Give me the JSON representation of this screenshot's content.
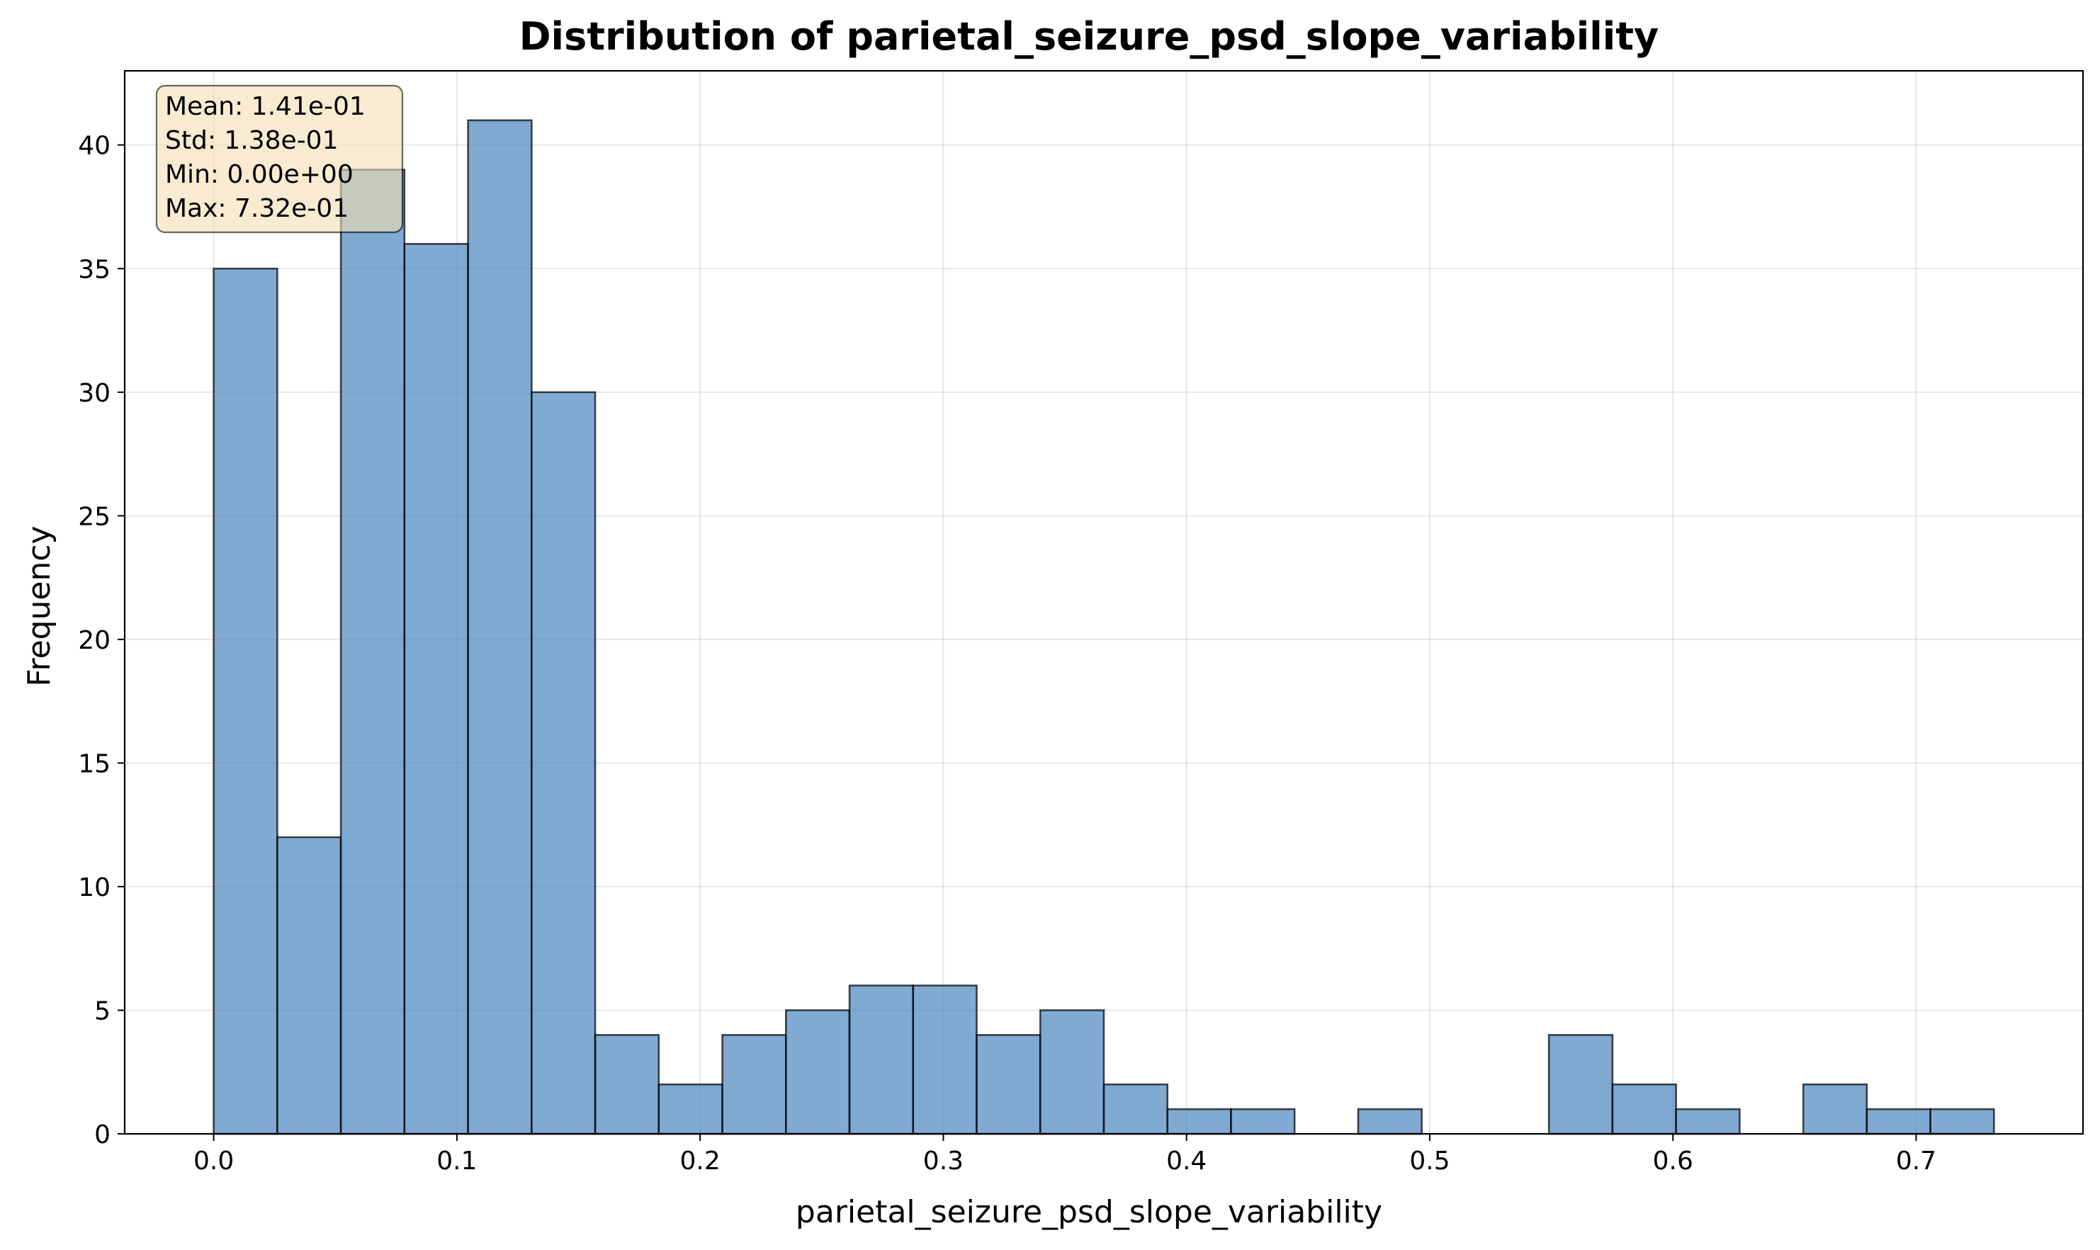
{
  "chart_data": {
    "type": "bar",
    "title": "Distribution of parietal_seizure_psd_slope_variability",
    "xlabel": "parietal_seizure_psd_slope_variability",
    "ylabel": "Frequency",
    "xlim": [
      -0.0366,
      0.7686
    ],
    "ylim": [
      0,
      43
    ],
    "x_ticks": [
      0.0,
      0.1,
      0.2,
      0.3,
      0.4,
      0.5,
      0.6,
      0.7
    ],
    "x_tick_labels": [
      "0.0",
      "0.1",
      "0.2",
      "0.3",
      "0.4",
      "0.5",
      "0.6",
      "0.7"
    ],
    "y_ticks": [
      0,
      5,
      10,
      15,
      20,
      25,
      30,
      35,
      40
    ],
    "y_tick_labels": [
      "0",
      "5",
      "10",
      "15",
      "20",
      "25",
      "30",
      "35",
      "40"
    ],
    "grid": true,
    "bin_start": 0.0,
    "bin_end": 0.732,
    "values": [
      35,
      12,
      39,
      36,
      41,
      30,
      4,
      2,
      4,
      5,
      6,
      6,
      4,
      5,
      2,
      1,
      1,
      0,
      1,
      0,
      0,
      4,
      2,
      1,
      0,
      2,
      1,
      1
    ],
    "bar_color": "#4a86bd",
    "stats_box": {
      "lines": [
        "Mean: 1.41e-01",
        "Std: 1.38e-01",
        "Min: 0.00e+00",
        "Max: 7.32e-01"
      ],
      "placement": "top-left",
      "background": "#f5deb3"
    }
  }
}
